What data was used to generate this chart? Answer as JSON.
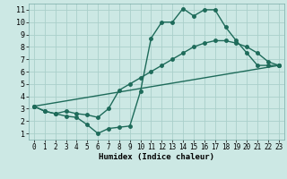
{
  "xlabel": "Humidex (Indice chaleur)",
  "bg_color": "#cce8e4",
  "grid_color": "#aacfca",
  "line_color": "#1e6b5a",
  "xlim": [
    -0.5,
    23.5
  ],
  "ylim": [
    0.5,
    11.5
  ],
  "xticks": [
    0,
    1,
    2,
    3,
    4,
    5,
    6,
    7,
    8,
    9,
    10,
    11,
    12,
    13,
    14,
    15,
    16,
    17,
    18,
    19,
    20,
    21,
    22,
    23
  ],
  "yticks": [
    1,
    2,
    3,
    4,
    5,
    6,
    7,
    8,
    9,
    10,
    11
  ],
  "line1_x": [
    0,
    1,
    2,
    3,
    4,
    5,
    6,
    7,
    8,
    9,
    10,
    11,
    12,
    13,
    14,
    15,
    16,
    17,
    18,
    19,
    20,
    21,
    22,
    23
  ],
  "line1_y": [
    3.2,
    2.8,
    2.6,
    2.4,
    2.3,
    1.7,
    1.0,
    1.4,
    1.5,
    1.6,
    4.4,
    8.7,
    10.0,
    10.0,
    11.1,
    10.5,
    11.0,
    11.0,
    9.6,
    8.5,
    7.5,
    6.5,
    6.5,
    6.5
  ],
  "line2_x": [
    0,
    1,
    2,
    3,
    4,
    5,
    6,
    7,
    8,
    9,
    10,
    11,
    12,
    13,
    14,
    15,
    16,
    17,
    18,
    19,
    20,
    21,
    22,
    23
  ],
  "line2_y": [
    3.2,
    2.8,
    2.6,
    2.8,
    2.6,
    2.5,
    2.3,
    3.0,
    4.5,
    5.0,
    5.5,
    6.0,
    6.5,
    7.0,
    7.5,
    8.0,
    8.3,
    8.5,
    8.5,
    8.3,
    8.0,
    7.5,
    6.8,
    6.5
  ],
  "line3_x": [
    0,
    23
  ],
  "line3_y": [
    3.2,
    6.5
  ],
  "markersize": 2.5,
  "linewidth": 1.0,
  "tick_fontsize": 5.5,
  "xlabel_fontsize": 6.5
}
